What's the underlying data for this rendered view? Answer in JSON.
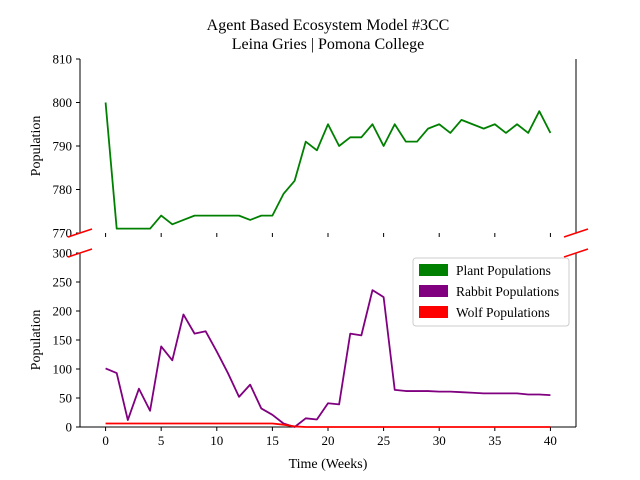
{
  "chart_data": {
    "type": "line",
    "title": "Agent Based Ecosystem Model #3CC",
    "subtitle": "Leina Gries | Pomona College",
    "xlabel": "Time (Weeks)",
    "ylabel_top": "Population",
    "ylabel_bottom": "Population",
    "broken_y_axis": true,
    "grid": false,
    "legend_position": "top-right",
    "xlim": [
      -2.3,
      42.3
    ],
    "x_ticks": [
      0,
      5,
      10,
      15,
      20,
      25,
      30,
      35,
      40
    ],
    "top_panel": {
      "ylim": [
        770,
        810
      ],
      "y_ticks": [
        770,
        780,
        790,
        800,
        810
      ]
    },
    "bottom_panel": {
      "ylim": [
        0,
        300
      ],
      "y_ticks": [
        0,
        50,
        100,
        150,
        200,
        250,
        300
      ]
    },
    "x": [
      0,
      1,
      2,
      3,
      4,
      5,
      6,
      7,
      8,
      9,
      10,
      11,
      12,
      13,
      14,
      15,
      16,
      17,
      18,
      19,
      20,
      21,
      22,
      23,
      24,
      25,
      26,
      27,
      28,
      29,
      30,
      31,
      32,
      33,
      34,
      35,
      36,
      37,
      38,
      39,
      40
    ],
    "series": [
      {
        "name": "Plant Populations",
        "color": "#008000",
        "panel": "top",
        "values": [
          800,
          771,
          771,
          771,
          771,
          774,
          772,
          773,
          774,
          774,
          774,
          774,
          774,
          773,
          774,
          774,
          779,
          782,
          791,
          789,
          795,
          790,
          792,
          792,
          795,
          790,
          795,
          791,
          791,
          794,
          795,
          793,
          796,
          795,
          794,
          795,
          793,
          795,
          793,
          798,
          793
        ]
      },
      {
        "name": "Rabbit Populations",
        "color": "#800080",
        "panel": "bottom",
        "values": [
          101,
          93,
          12,
          66,
          28,
          139,
          115,
          194,
          161,
          165,
          130,
          93,
          52,
          73,
          32,
          21,
          6,
          0,
          15,
          13,
          41,
          39,
          161,
          158,
          236,
          224,
          64,
          62,
          62,
          62,
          61,
          61,
          60,
          59,
          58,
          58,
          58,
          58,
          56,
          56,
          55
        ]
      },
      {
        "name": "Wolf Populations",
        "color": "#ff0000",
        "panel": "bottom",
        "values": [
          6,
          6,
          6,
          6,
          6,
          6,
          6,
          6,
          6,
          6,
          6,
          6,
          6,
          6,
          6,
          6,
          4,
          1,
          0,
          0,
          0,
          0,
          0,
          0,
          0,
          0,
          0,
          0,
          0,
          0,
          0,
          0,
          0,
          0,
          0,
          0,
          0,
          0,
          0,
          0,
          0
        ]
      }
    ]
  }
}
